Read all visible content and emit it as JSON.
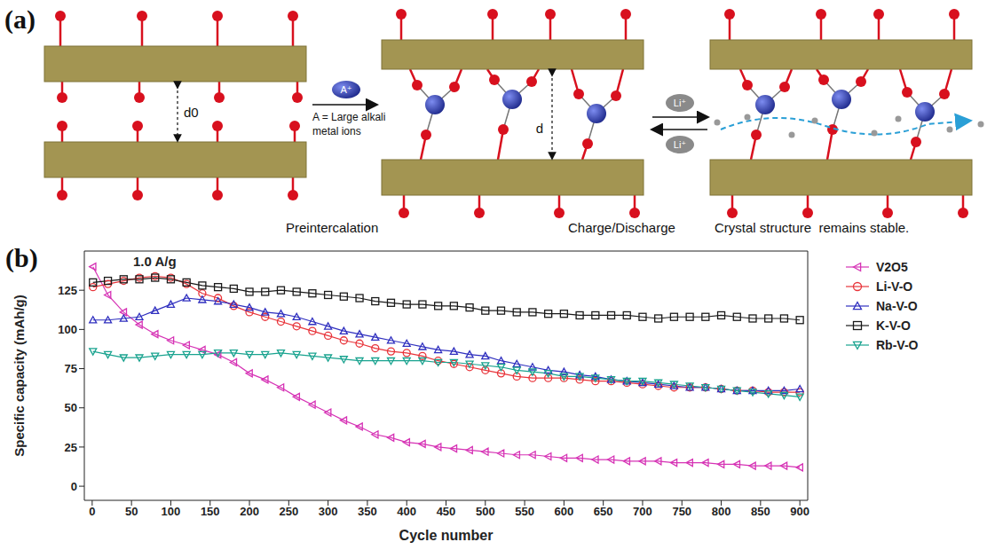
{
  "panel_labels": [
    "(a)",
    "(b)"
  ],
  "diagram": {
    "spacings": [
      "d0",
      "d"
    ],
    "ion": "A⁺",
    "ion_note": "A = Large alkali metal ions",
    "li_ion": "Li⁺",
    "steps": [
      "Preintercalation",
      "Charge/Discharge",
      "Crystal structure  remains stable."
    ]
  },
  "chart_data": {
    "type": "line",
    "annotations": [
      "1.0 A/g"
    ],
    "x_label": "Cycle number",
    "y_label": "Specific capacity (mAh/g)",
    "xlim": [
      -10,
      910
    ],
    "xticks": [
      0,
      50,
      100,
      150,
      200,
      250,
      300,
      350,
      400,
      450,
      500,
      550,
      600,
      650,
      700,
      750,
      800,
      850,
      900
    ],
    "ylim": [
      -9,
      150
    ],
    "yticks": [
      0,
      25,
      50,
      75,
      100,
      125
    ],
    "grid": false,
    "legend": "right",
    "x": [
      1,
      20,
      40,
      60,
      80,
      100,
      120,
      140,
      160,
      180,
      200,
      220,
      240,
      260,
      280,
      300,
      320,
      340,
      360,
      380,
      400,
      420,
      440,
      460,
      480,
      500,
      520,
      540,
      560,
      580,
      600,
      620,
      640,
      660,
      680,
      700,
      720,
      740,
      760,
      780,
      800,
      820,
      840,
      860,
      880,
      900
    ],
    "series": [
      {
        "name": "V2O5",
        "color": "#d633b5",
        "marker": "triangle-left",
        "line_style": "solid",
        "values": [
          140,
          122,
          111,
          103,
          97,
          93,
          90,
          87,
          84,
          79,
          72,
          68,
          63,
          57,
          52,
          47,
          42,
          38,
          33,
          31,
          28,
          27,
          25,
          24,
          23,
          22,
          21,
          20,
          20,
          19,
          18,
          18,
          17,
          17,
          16,
          16,
          16,
          15,
          15,
          15,
          14,
          14,
          13,
          13,
          13,
          12
        ]
      },
      {
        "name": "Li-V-O",
        "color": "#e8343a",
        "marker": "circle",
        "line_style": "solid",
        "values": [
          127,
          129,
          131,
          133,
          134,
          133,
          129,
          123,
          120,
          115,
          111,
          108,
          105,
          102,
          99,
          96,
          93,
          91,
          88,
          86,
          85,
          83,
          80,
          78,
          76,
          74,
          72,
          70,
          69,
          69,
          69,
          68,
          67,
          67,
          66,
          65,
          64,
          63,
          63,
          63,
          62,
          61,
          61,
          60,
          60,
          60
        ]
      },
      {
        "name": "Na-V-O",
        "color": "#2f2fbf",
        "marker": "triangle-up",
        "line_style": "solid",
        "values": [
          106,
          106,
          107,
          108,
          112,
          116,
          120,
          119,
          118,
          116,
          114,
          111,
          110,
          108,
          105,
          102,
          99,
          97,
          95,
          93,
          91,
          89,
          87,
          86,
          84,
          83,
          80,
          78,
          76,
          74,
          73,
          71,
          70,
          68,
          67,
          66,
          65,
          64,
          63,
          63,
          62,
          61,
          61,
          61,
          61,
          62
        ]
      },
      {
        "name": "K-V-O",
        "color": "#1a1a1a",
        "marker": "square",
        "line_style": "solid",
        "values": [
          130,
          131,
          132,
          132,
          133,
          132,
          130,
          128,
          127,
          126,
          124,
          124,
          125,
          124,
          123,
          122,
          121,
          120,
          118,
          117,
          116,
          116,
          115,
          115,
          114,
          112,
          112,
          111,
          111,
          110,
          110,
          109,
          109,
          109,
          109,
          108,
          107,
          108,
          108,
          108,
          109,
          108,
          107,
          107,
          107,
          106
        ]
      },
      {
        "name": "Rb-V-O",
        "color": "#19a38f",
        "marker": "triangle-down",
        "line_style": "solid",
        "values": [
          86,
          84,
          82,
          82,
          83,
          84,
          84,
          84,
          85,
          85,
          84,
          84,
          85,
          84,
          83,
          82,
          81,
          80,
          80,
          80,
          80,
          80,
          79,
          79,
          78,
          77,
          76,
          74,
          73,
          72,
          70,
          70,
          69,
          68,
          67,
          67,
          66,
          65,
          64,
          63,
          62,
          61,
          60,
          59,
          58,
          57
        ]
      }
    ]
  }
}
